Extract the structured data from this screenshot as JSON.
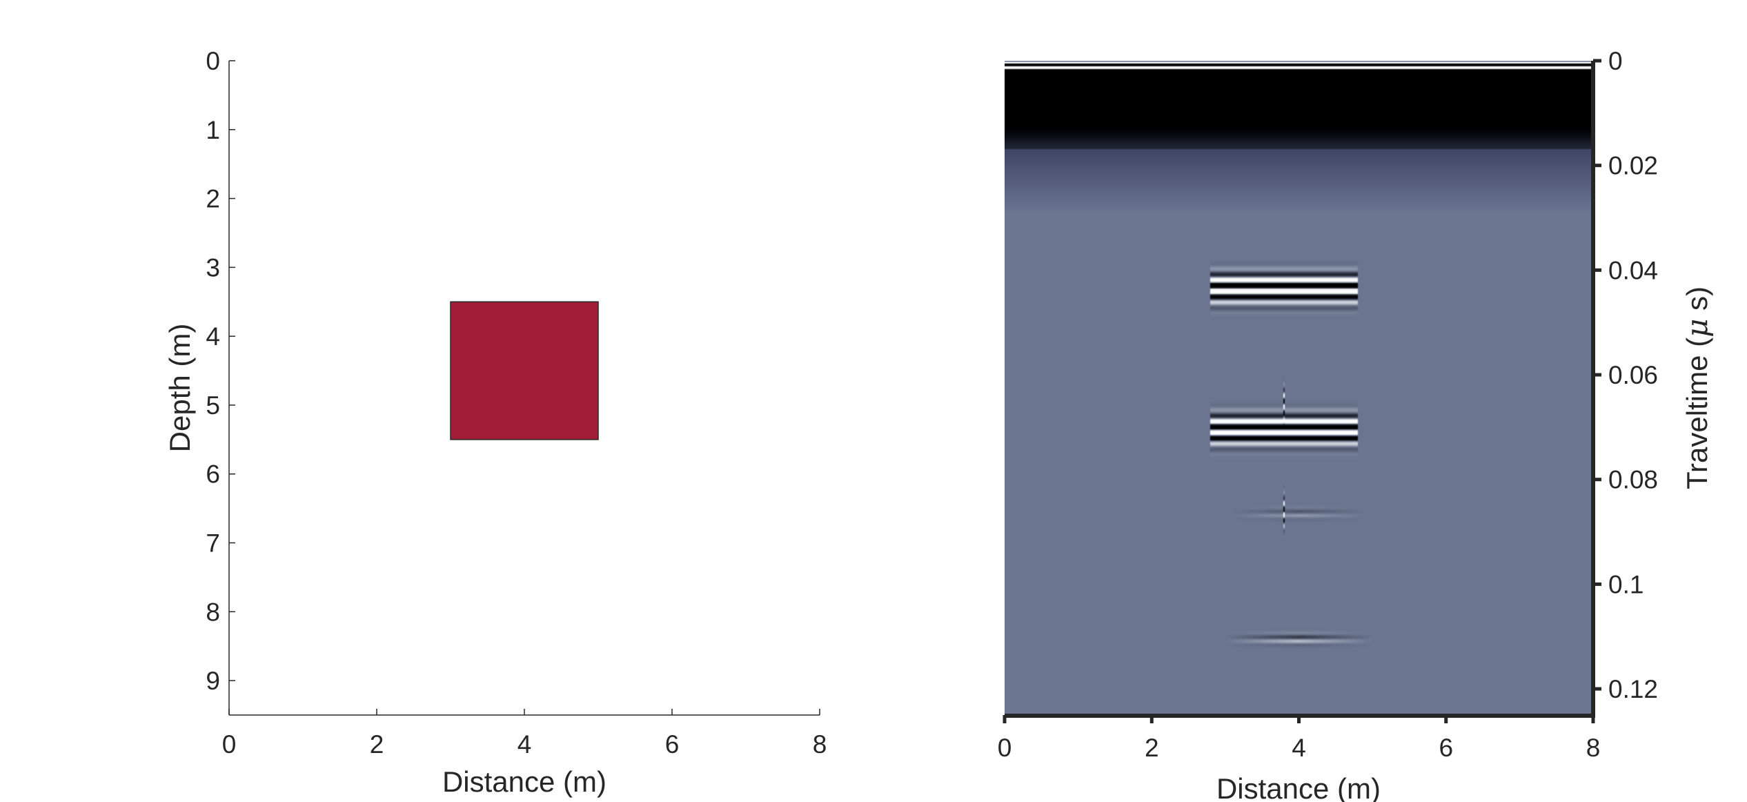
{
  "chart_data": [
    {
      "type": "patch",
      "xlabel": "Distance (m)",
      "ylabel": "Depth (m)",
      "xlim": [
        0,
        8
      ],
      "ylim": [
        0,
        9.5
      ],
      "y_reversed": true,
      "x_ticks": [
        0,
        2,
        4,
        6,
        8
      ],
      "y_ticks": [
        0,
        1,
        2,
        3,
        4,
        5,
        6,
        7,
        8,
        9
      ],
      "grid": false,
      "rectangles": [
        {
          "x": [
            3,
            5
          ],
          "y": [
            3.5,
            5.5
          ],
          "color": "#a21e36"
        }
      ]
    },
    {
      "type": "heatmap",
      "xlabel": "Distance (m)",
      "ylabel": "Traveltime (μ s)",
      "ylabel_parts": [
        "Traveltime (",
        "μ",
        " s)"
      ],
      "ylabel_position": "right",
      "xlim": [
        0,
        8
      ],
      "ylim": [
        0,
        0.125
      ],
      "y_reversed": true,
      "x_ticks": [
        0,
        2,
        4,
        6,
        8
      ],
      "y_ticks": [
        0,
        0.02,
        0.04,
        0.06,
        0.08,
        0.1,
        0.12
      ],
      "y_tick_labels": [
        "0",
        "0.02",
        "0.04",
        "0.06",
        "0.08",
        "0.1",
        "0.12"
      ],
      "colormap": "black-white-slate",
      "background_color": "#6b7590",
      "direct_wave": {
        "t_start": 0.002,
        "t_end": 0.017
      },
      "hyperbolas": [
        {
          "apex_x": 3.8,
          "apex_t": 0.0435,
          "velocity": 0.117,
          "flat_halfwidth": 1.0,
          "strength": 1.0
        },
        {
          "apex_x": 3.8,
          "apex_t": 0.0445,
          "velocity": 0.117,
          "flat_halfwidth": 0.0,
          "strength": 0.9
        },
        {
          "apex_x": 3.8,
          "apex_t": 0.0705,
          "velocity": 0.117,
          "flat_halfwidth": 1.0,
          "strength": 1.0
        },
        {
          "apex_x": 3.8,
          "apex_t": 0.0715,
          "velocity": 0.117,
          "flat_halfwidth": 0.0,
          "strength": 0.9
        }
      ],
      "faint_events": [
        {
          "x": 4.0,
          "t": 0.0865,
          "halfwidth": 0.9,
          "strength": 0.15
        },
        {
          "x": 4.0,
          "t": 0.1105,
          "halfwidth": 1.0,
          "strength": 0.3
        }
      ]
    }
  ]
}
